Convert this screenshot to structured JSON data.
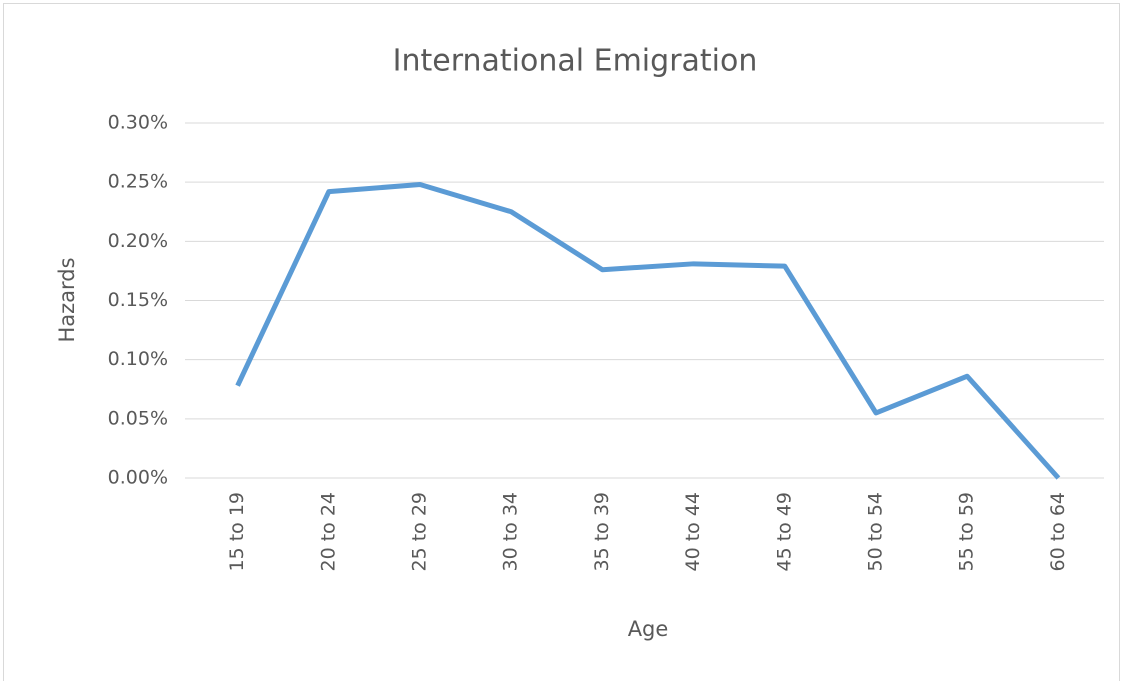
{
  "chart_data": {
    "type": "line",
    "title": "International Emigration",
    "x_label": "Age",
    "y_label": "Hazards",
    "categories": [
      "15 to 19",
      "20 to 24",
      "25 to 29",
      "30 to 34",
      "35 to 39",
      "40 to 44",
      "45 to 49",
      "50 to 54",
      "55 to 59",
      "60 to 64"
    ],
    "series": [
      {
        "name": "Hazards",
        "color": "#5b9bd5",
        "values": [
          0.078,
          0.242,
          0.248,
          0.225,
          0.176,
          0.181,
          0.179,
          0.055,
          0.086,
          0.0
        ]
      }
    ],
    "ylim": [
      0,
      0.3
    ],
    "yticks": [
      {
        "value": 0,
        "label": "0.00%"
      },
      {
        "value": 0.05,
        "label": "0.05%"
      },
      {
        "value": 0.1,
        "label": "0.10%"
      },
      {
        "value": 0.15,
        "label": "0.15%"
      },
      {
        "value": 0.2,
        "label": "0.20%"
      },
      {
        "value": 0.25,
        "label": "0.25%"
      },
      {
        "value": 0.3,
        "label": "0.30%"
      }
    ],
    "grid": true
  }
}
